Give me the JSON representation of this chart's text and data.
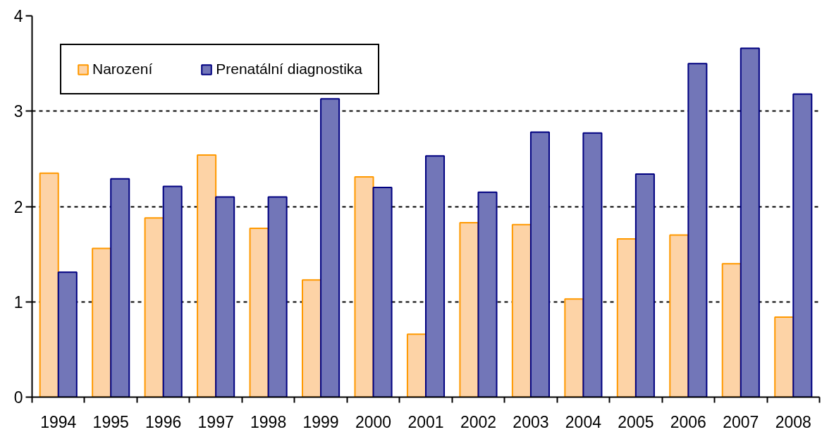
{
  "chart_data": {
    "type": "bar",
    "categories": [
      "1994",
      "1995",
      "1996",
      "1997",
      "1998",
      "1999",
      "2000",
      "2001",
      "2002",
      "2003",
      "2004",
      "2005",
      "2006",
      "2007",
      "2008"
    ],
    "series": [
      {
        "name": "Narození",
        "color": "#fdd3a6",
        "values": [
          2.35,
          1.56,
          1.88,
          2.54,
          1.77,
          1.23,
          2.31,
          0.66,
          1.83,
          1.81,
          1.03,
          1.66,
          1.7,
          1.4,
          0.84
        ]
      },
      {
        "name": "Prenatální diagnostika",
        "color": "#7276b8",
        "values": [
          1.31,
          2.29,
          2.21,
          2.1,
          2.1,
          3.13,
          2.2,
          2.53,
          2.15,
          2.78,
          2.77,
          2.34,
          3.5,
          3.66,
          3.18
        ]
      }
    ],
    "ylim": [
      0,
      4
    ],
    "yticks": [
      0,
      1,
      2,
      3,
      4
    ],
    "grid": "y",
    "legend": "top left"
  }
}
